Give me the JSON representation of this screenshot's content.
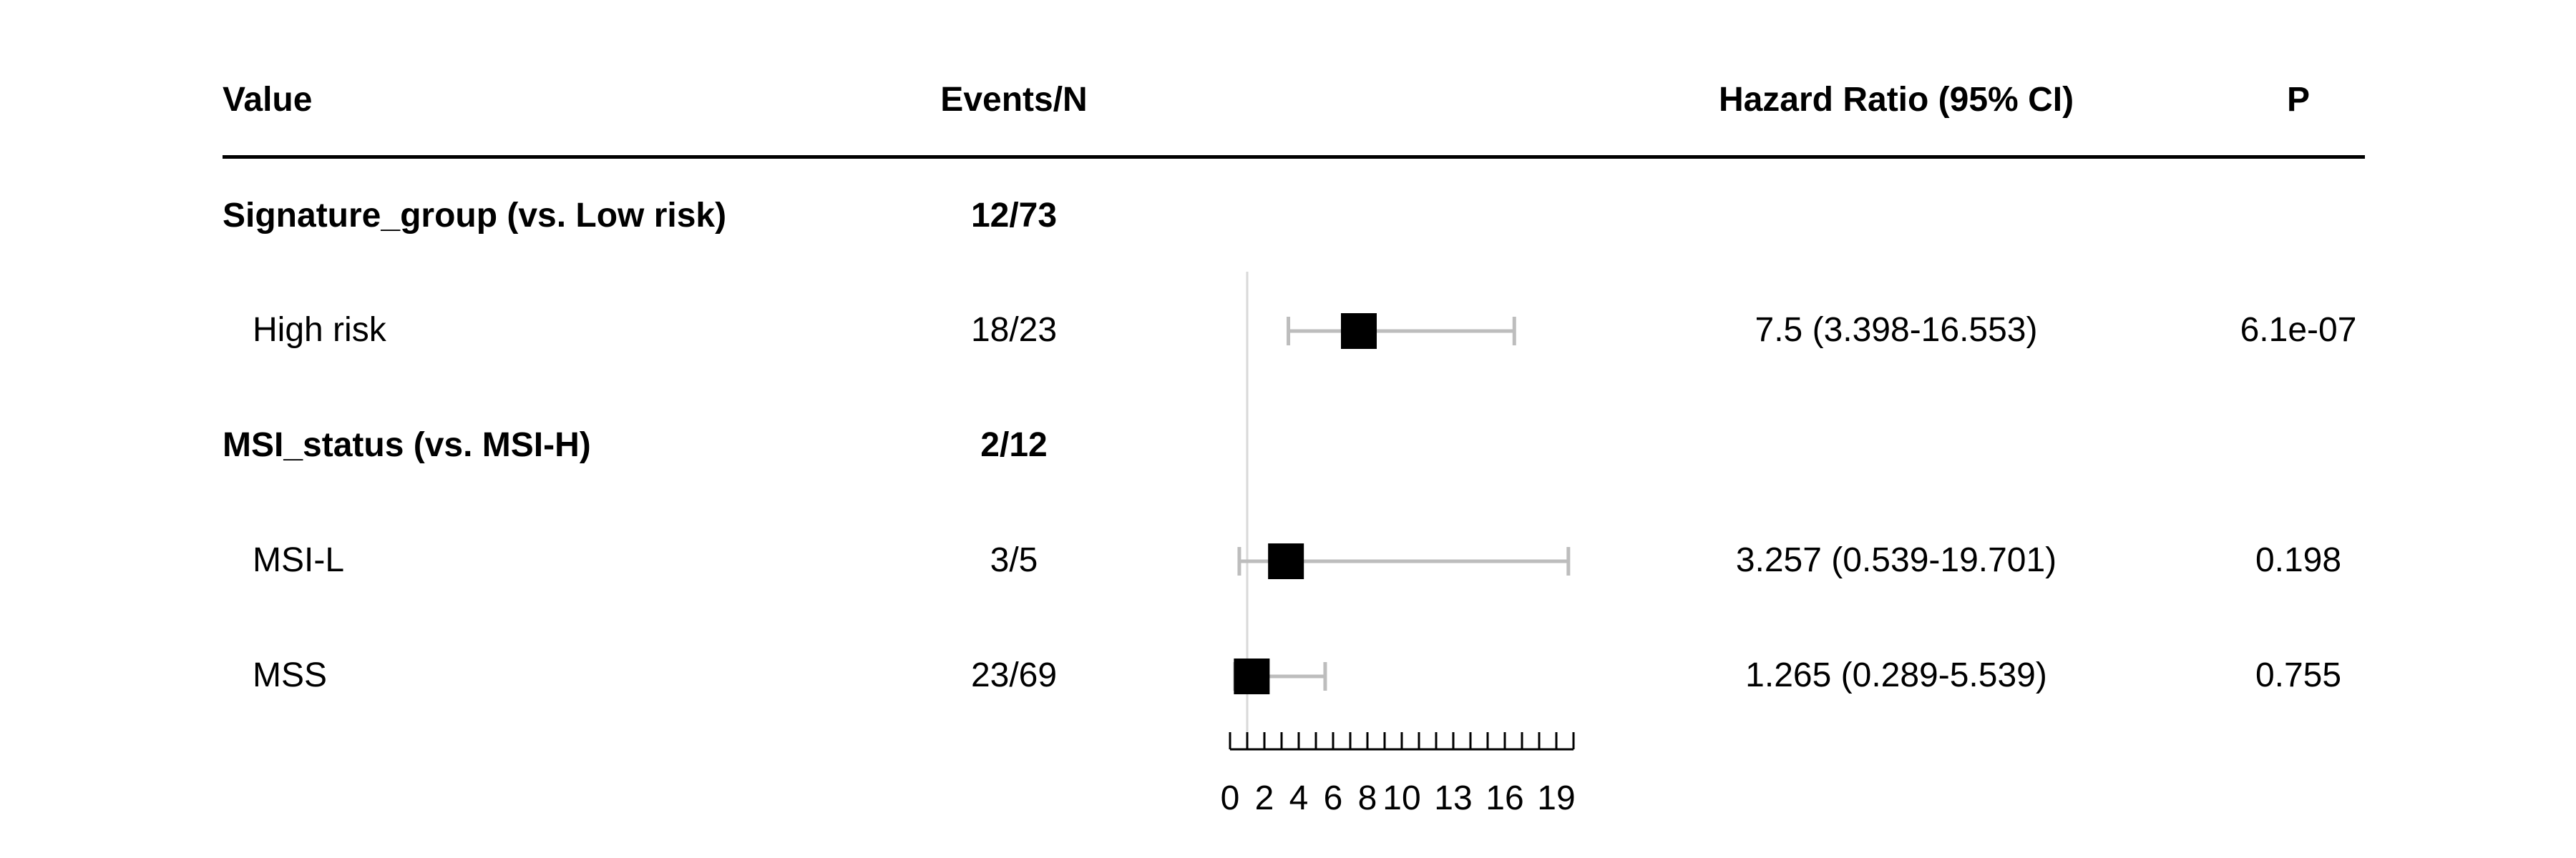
{
  "header": {
    "value": "Value",
    "events": "Events/N",
    "hr": "Hazard Ratio (95% CI)",
    "p": "P"
  },
  "rows": [
    {
      "label": "Signature_group (vs. Low risk)",
      "events": "12/73",
      "is_group": true
    },
    {
      "label": "High risk",
      "events": "18/23",
      "hr_text": "7.5 (3.398-16.553)",
      "p": "6.1e-07",
      "is_group": false
    },
    {
      "label": "MSI_status (vs. MSI-H)",
      "events": "2/12",
      "is_group": true
    },
    {
      "label": "MSI-L",
      "events": "3/5",
      "hr_text": "3.257 (0.539-19.701)",
      "p": "0.198",
      "is_group": false
    },
    {
      "label": "MSS",
      "events": "23/69",
      "hr_text": "1.265 (0.289-5.539)",
      "p": "0.755",
      "is_group": false
    }
  ],
  "chart_data": {
    "type": "scatter",
    "xlim": [
      0,
      20
    ],
    "reference_line": 1,
    "tick_labels": [
      "0",
      "2",
      "4",
      "6",
      "8",
      "10",
      "13",
      "16",
      "19"
    ],
    "series": [
      {
        "values": [
          {
            "label": "High risk",
            "hr": 7.5,
            "lower": 3.398,
            "upper": 16.553
          },
          {
            "label": "MSI-L",
            "hr": 3.257,
            "lower": 0.539,
            "upper": 19.701
          },
          {
            "label": "MSS",
            "hr": 1.265,
            "lower": 0.289,
            "upper": 5.539
          }
        ]
      }
    ],
    "colors": {
      "ci": "#bdbdbd",
      "point": "#000000",
      "reference": "#d9d9d9"
    }
  }
}
